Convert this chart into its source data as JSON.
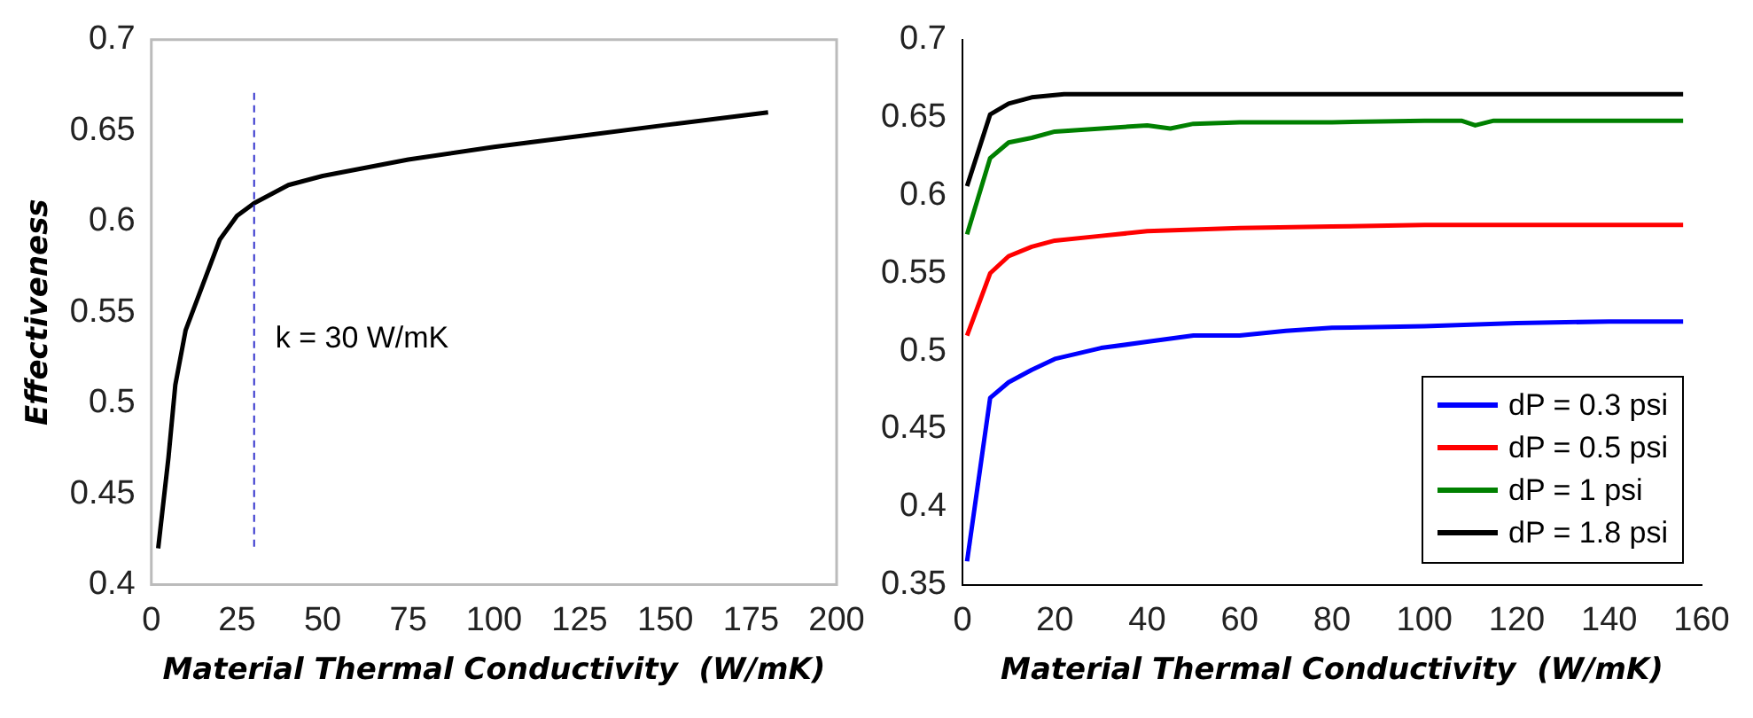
{
  "chart_data": [
    {
      "type": "line",
      "xlabel": "Material Thermal Conductivity  (W/mK)",
      "ylabel": "Effectiveness",
      "xlim": [
        0,
        200
      ],
      "xticks": [
        0,
        25,
        50,
        75,
        100,
        125,
        150,
        175,
        200
      ],
      "ylim": [
        0.4,
        0.7
      ],
      "yticks": [
        0.4,
        0.45,
        0.5,
        0.55,
        0.6,
        0.65,
        0.7
      ],
      "grid": false,
      "legend": false,
      "series": [
        {
          "color": "#000000",
          "x": [
            2,
            5,
            7,
            10,
            15,
            20,
            25,
            30,
            40,
            50,
            75,
            100,
            125,
            150,
            180
          ],
          "values": [
            0.42,
            0.47,
            0.51,
            0.54,
            0.565,
            0.59,
            0.603,
            0.61,
            0.62,
            0.625,
            0.634,
            0.641,
            0.647,
            0.653,
            0.66
          ]
        }
      ],
      "ref_lines": [
        {
          "axis": "x",
          "value": 30,
          "label": "k = 30 W/mK",
          "color": "#3333cc",
          "line_style": "dashed"
        }
      ]
    },
    {
      "type": "line",
      "xlabel": "Material Thermal Conductivity  (W/mK)",
      "xlim": [
        0,
        160
      ],
      "xticks": [
        0,
        20,
        40,
        60,
        80,
        100,
        120,
        140,
        160
      ],
      "ylim": [
        0.35,
        0.7
      ],
      "yticks": [
        0.35,
        0.4,
        0.45,
        0.5,
        0.55,
        0.6,
        0.65,
        0.7
      ],
      "grid": false,
      "legend": "bottom right",
      "series": [
        {
          "name": "dP = 0.3 psi",
          "color": "#0000ff",
          "x": [
            1,
            6,
            10,
            15,
            20,
            30,
            40,
            50,
            60,
            70,
            80,
            100,
            120,
            140,
            156
          ],
          "values": [
            0.365,
            0.47,
            0.48,
            0.488,
            0.495,
            0.502,
            0.506,
            0.51,
            0.51,
            0.513,
            0.515,
            0.516,
            0.518,
            0.519,
            0.519
          ]
        },
        {
          "name": "dP = 0.5 psi",
          "color": "#ff0000",
          "x": [
            1,
            6,
            10,
            15,
            20,
            30,
            40,
            60,
            80,
            100,
            156
          ],
          "values": [
            0.51,
            0.55,
            0.561,
            0.567,
            0.571,
            0.574,
            0.577,
            0.579,
            0.58,
            0.581,
            0.581
          ]
        },
        {
          "name": "dP = 1 psi",
          "color": "#008000",
          "x": [
            1,
            6,
            10,
            15,
            20,
            30,
            40,
            45,
            50,
            60,
            80,
            100,
            108,
            111,
            115,
            156
          ],
          "values": [
            0.575,
            0.624,
            0.634,
            0.637,
            0.641,
            0.643,
            0.645,
            0.643,
            0.646,
            0.647,
            0.647,
            0.648,
            0.648,
            0.645,
            0.648,
            0.648
          ]
        },
        {
          "name": "dP = 1.8 psi",
          "color": "#000000",
          "x": [
            1,
            6,
            10,
            15,
            22,
            156
          ],
          "values": [
            0.606,
            0.652,
            0.659,
            0.663,
            0.665,
            0.665
          ]
        }
      ]
    }
  ]
}
